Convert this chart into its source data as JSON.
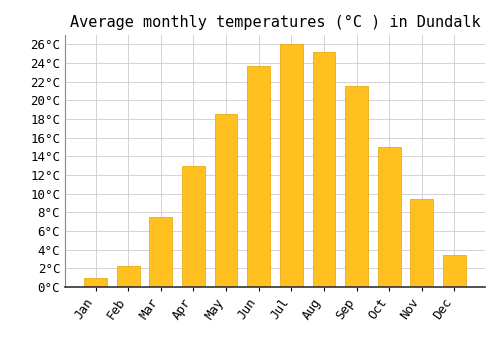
{
  "title": "Average monthly temperatures (°C ) in Dundalk",
  "months": [
    "Jan",
    "Feb",
    "Mar",
    "Apr",
    "May",
    "Jun",
    "Jul",
    "Aug",
    "Sep",
    "Oct",
    "Nov",
    "Dec"
  ],
  "values": [
    1.0,
    2.3,
    7.5,
    13.0,
    18.5,
    23.7,
    26.0,
    25.2,
    21.5,
    15.0,
    9.4,
    3.4
  ],
  "bar_color": "#FFC020",
  "bar_edge_color": "#E8A000",
  "background_color": "#FFFFFF",
  "grid_color": "#CCCCCC",
  "ylim": [
    0,
    27
  ],
  "ytick_step": 2,
  "title_fontsize": 11,
  "tick_fontsize": 9,
  "font_family": "monospace"
}
